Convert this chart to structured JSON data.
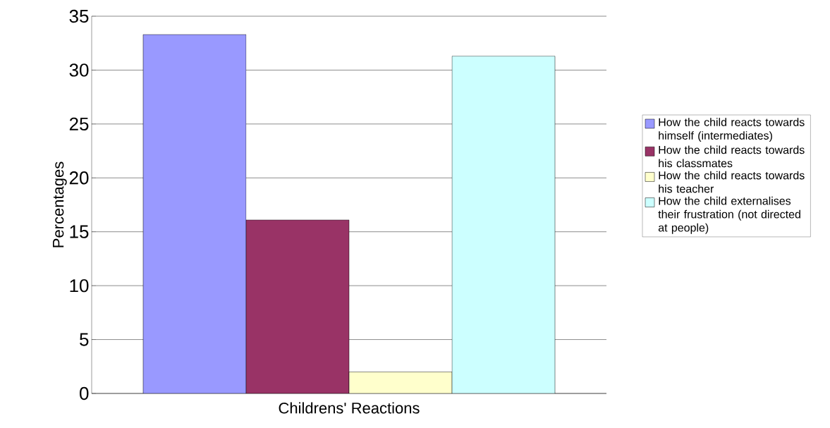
{
  "chart_data": {
    "type": "bar",
    "xlabel": "Childrens' Reactions",
    "ylabel": "Percentages",
    "categories": [
      null
    ],
    "series": [
      {
        "name": "How the child reacts towards himself (intermediates)",
        "color": "#9999ff",
        "values": [
          33.3
        ]
      },
      {
        "name": "How the child reacts towards his classmates",
        "color": "#993366",
        "values": [
          16.1
        ]
      },
      {
        "name": "How the child reacts towards his teacher",
        "color": "#ffffcc",
        "values": [
          2.0
        ]
      },
      {
        "name": "How the child externalises their frustration (not directed at people)",
        "color": "#ccffff",
        "values": [
          31.3
        ]
      }
    ],
    "ylim": [
      0,
      35
    ],
    "yticks": [
      0,
      5,
      10,
      15,
      20,
      25,
      30,
      35
    ],
    "grid": "y",
    "legend": "right"
  }
}
